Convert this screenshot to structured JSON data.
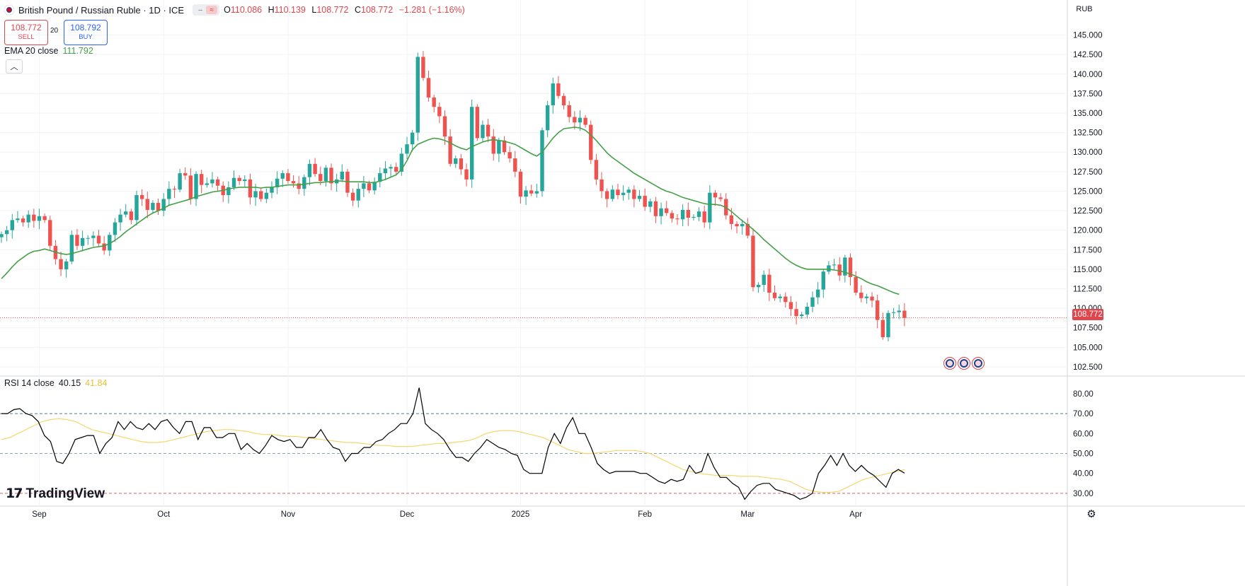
{
  "header": {
    "title": "British Pound / Russian Ruble · 1D · ICE",
    "ohlc": [
      {
        "k": "O",
        "v": "110.086"
      },
      {
        "k": "H",
        "v": "110.139"
      },
      {
        "k": "L",
        "v": "108.772"
      },
      {
        "k": "C",
        "v": "108.772"
      },
      {
        "k": "",
        "v": "−1.281 (−1.16%)"
      }
    ]
  },
  "trade": {
    "sell_price": "108.772",
    "sell_label": "SELL",
    "buy_price": "108.792",
    "buy_label": "BUY",
    "spread": "20"
  },
  "ema_legend": {
    "label": "EMA 20 close",
    "value": "111.792"
  },
  "rsi_legend": {
    "label": "RSI 14 close",
    "value": "40.15",
    "ma_value": "41.84"
  },
  "currency": "RUB",
  "last_price": "108.772",
  "brand": "TradingView",
  "colors": {
    "up": "#26a69a",
    "down": "#ef5350",
    "ema": "#43a047",
    "rsi": "#000000",
    "rsi_ma": "#f5d76e",
    "upper_band": "#5b7b89",
    "mid_band": "#8fa3b0",
    "lower_band": "#e0454c"
  },
  "chart_data": [
    {
      "type": "candlestick",
      "title": "British Pound / Russian Ruble · 1D · ICE",
      "ylim": [
        101.5,
        146.5
      ],
      "yticks": [
        "102.500",
        "105.000",
        "107.500",
        "110.000",
        "112.500",
        "115.000",
        "117.500",
        "120.000",
        "122.500",
        "125.000",
        "127.500",
        "130.000",
        "132.500",
        "135.000",
        "137.500",
        "140.000",
        "142.500",
        "145.000"
      ],
      "xticks": [
        "Sep",
        "Oct",
        "Nov",
        "Dec",
        "2025",
        "Feb",
        "Mar",
        "Apr"
      ],
      "x_tick_bars": [
        7,
        30,
        53,
        75,
        96,
        119,
        138,
        158
      ],
      "close": [
        119.5,
        120.0,
        121.3,
        121.5,
        121.0,
        122.0,
        121.2,
        121.8,
        121.3,
        118.0,
        116.3,
        115.0,
        116.0,
        119.4,
        118.0,
        119.0,
        119.0,
        119.3,
        118.3,
        117.4,
        119.4,
        121.0,
        122.0,
        122.4,
        121.3,
        124.5,
        124.0,
        122.6,
        123.5,
        122.5,
        124.0,
        125.3,
        125.2,
        127.3,
        127.0,
        124.0,
        127.2,
        125.8,
        126.0,
        126.5,
        125.7,
        124.5,
        125.5,
        126.7,
        126.3,
        126.5,
        124.2,
        125.0,
        124.0,
        124.8,
        125.5,
        126.6,
        127.3,
        126.3,
        126.0,
        125.3,
        126.8,
        128.5,
        127.2,
        126.3,
        128.0,
        126.0,
        126.5,
        127.5,
        124.8,
        123.8,
        125.3,
        126.0,
        125.1,
        126.2,
        127.3,
        127.9,
        128.1,
        127.5,
        129.8,
        131.0,
        132.5,
        142.2,
        139.5,
        137.0,
        135.8,
        134.6,
        132.0,
        128.5,
        129.2,
        127.8,
        126.5,
        135.8,
        131.8,
        133.5,
        132.0,
        129.8,
        131.5,
        130.0,
        129.2,
        127.5,
        124.3,
        125.1,
        124.7,
        125.0,
        132.8,
        136.0,
        138.8,
        137.2,
        136.0,
        134.5,
        133.8,
        134.4,
        133.5,
        129.0,
        126.5,
        125.0,
        124.0,
        125.2,
        124.5,
        124.8,
        125.2,
        124.0,
        124.4,
        123.0,
        123.7,
        121.8,
        122.8,
        122.2,
        121.5,
        121.4,
        122.6,
        121.6,
        121.7,
        122.4,
        121.0,
        124.8,
        124.2,
        124.0,
        121.9,
        120.8,
        120.5,
        120.8,
        119.3,
        112.7,
        113.0,
        114.3,
        112.0,
        111.3,
        111.5,
        110.8,
        109.9,
        109.0,
        109.2,
        110.2,
        111.4,
        112.4,
        114.7,
        115.5,
        115.6,
        114.2,
        116.5,
        114.0,
        112.0,
        111.3,
        111.5,
        111.0,
        108.5,
        106.3,
        109.4,
        109.5,
        109.7,
        108.772
      ],
      "series": [
        {
          "name": "EMA 20 close",
          "values": [
            113.8,
            114.5,
            115.3,
            116.0,
            116.5,
            117.0,
            117.3,
            117.4,
            117.6,
            117.4,
            117.2,
            117.0,
            116.9,
            117.0,
            117.2,
            117.4,
            117.6,
            117.8,
            117.9,
            118.0,
            118.3,
            118.7,
            119.2,
            119.8,
            120.3,
            120.8,
            121.3,
            121.8,
            122.2,
            122.5,
            122.8,
            123.2,
            123.4,
            123.6,
            123.8,
            124.0,
            124.3,
            124.5,
            124.7,
            124.9,
            125.0,
            125.1,
            125.3,
            125.4,
            125.5,
            125.5,
            125.5,
            125.5,
            125.4,
            125.5,
            125.5,
            125.6,
            125.7,
            125.8,
            125.8,
            125.8,
            125.9,
            126.0,
            126.1,
            126.1,
            126.2,
            126.2,
            126.3,
            126.3,
            126.2,
            126.2,
            126.2,
            126.2,
            126.1,
            126.1,
            126.3,
            126.5,
            126.8,
            127.1,
            127.8,
            128.9,
            130.3,
            131.0,
            131.3,
            131.6,
            131.8,
            131.7,
            131.5,
            131.2,
            130.8,
            130.5,
            130.3,
            130.7,
            131.0,
            131.3,
            131.5,
            131.6,
            131.5,
            131.4,
            131.2,
            131.0,
            130.6,
            130.2,
            129.8,
            129.5,
            130.0,
            130.9,
            131.8,
            132.5,
            133.0,
            133.1,
            133.2,
            133.1,
            132.8,
            132.2,
            131.5,
            130.7,
            129.9,
            129.3,
            128.8,
            128.3,
            127.8,
            127.3,
            126.9,
            126.5,
            126.1,
            125.7,
            125.3,
            125.0,
            124.8,
            124.5,
            124.2,
            124.0,
            123.8,
            123.6,
            123.4,
            123.3,
            123.3,
            123.2,
            122.9,
            122.4,
            121.8,
            121.2,
            120.7,
            120.1,
            119.5,
            118.8,
            118.2,
            117.6,
            117.0,
            116.4,
            115.9,
            115.5,
            115.2,
            115.0,
            115.0,
            115.0,
            115.0,
            115.0,
            114.9,
            114.8,
            114.6,
            114.4,
            114.1,
            113.8,
            113.4,
            113.1,
            112.9,
            112.6,
            112.3,
            112.0,
            111.792
          ]
        },
        {
          "name": "RSI 14 close",
          "values": [
            70,
            70,
            72,
            72.5,
            70,
            69,
            66,
            59,
            56,
            46,
            45,
            50,
            57,
            58,
            59,
            59,
            50,
            55,
            58,
            66,
            62,
            66,
            63,
            62,
            65,
            62,
            66,
            67,
            63,
            60,
            66,
            66,
            57,
            63,
            63,
            58,
            58,
            60,
            60,
            52,
            55,
            52,
            50,
            54,
            59,
            57,
            56,
            57,
            53,
            53,
            58,
            58,
            62,
            57,
            53,
            52,
            46,
            50,
            50,
            53,
            53,
            56,
            57,
            60,
            62,
            65,
            65,
            70,
            83,
            65,
            62,
            60,
            57,
            52,
            48,
            48,
            46,
            50,
            53,
            57,
            55,
            53,
            52,
            50,
            49,
            42,
            40,
            40,
            40,
            53,
            60,
            55,
            63,
            68,
            60,
            60,
            53,
            45,
            42,
            40,
            41,
            41,
            41,
            41,
            40,
            40,
            38,
            36,
            35,
            37,
            36,
            37,
            44,
            40,
            41,
            50,
            43,
            38,
            38,
            35,
            33,
            27,
            31,
            34,
            35,
            35,
            32,
            31,
            30,
            29,
            27,
            28,
            30,
            40,
            44,
            49,
            44,
            50,
            44,
            41,
            44,
            41,
            39,
            36,
            33,
            40,
            42,
            40.15
          ]
        },
        {
          "name": "RSI MA",
          "values": [
            57,
            58,
            60,
            62,
            64,
            66,
            67,
            67.5,
            67,
            66,
            64,
            62,
            61,
            60,
            59,
            58,
            57,
            56,
            55.5,
            55.5,
            56,
            57,
            58,
            59,
            60,
            61,
            61.5,
            62,
            62,
            61.5,
            61,
            60,
            59.5,
            59.5,
            59,
            58.5,
            58.5,
            58,
            57.5,
            57,
            56.5,
            56,
            55.5,
            55.5,
            55,
            54.5,
            54,
            54,
            53.5,
            53.5,
            53.5,
            54,
            54.5,
            55,
            55,
            55.5,
            56,
            56.5,
            58,
            60,
            61,
            61.5,
            61.5,
            61,
            60,
            59,
            58,
            56,
            54,
            52,
            51,
            50,
            50,
            50.5,
            51,
            51.5,
            51.5,
            51.5,
            51,
            50,
            48,
            46,
            44,
            42,
            41,
            40,
            39.5,
            39,
            39,
            39,
            38.5,
            38.5,
            38.5,
            38,
            37.5,
            37,
            36,
            34,
            32,
            31,
            30.5,
            30.5,
            31,
            33,
            35,
            37,
            38,
            39,
            40,
            41,
            41.84
          ]
        }
      ],
      "rsi_ylim": [
        25,
        86
      ],
      "rsi_yticks": [
        "30.00",
        "40.00",
        "50.00",
        "60.00",
        "70.00",
        "80.00"
      ],
      "rsi_bands": [
        70,
        50,
        30
      ]
    }
  ]
}
